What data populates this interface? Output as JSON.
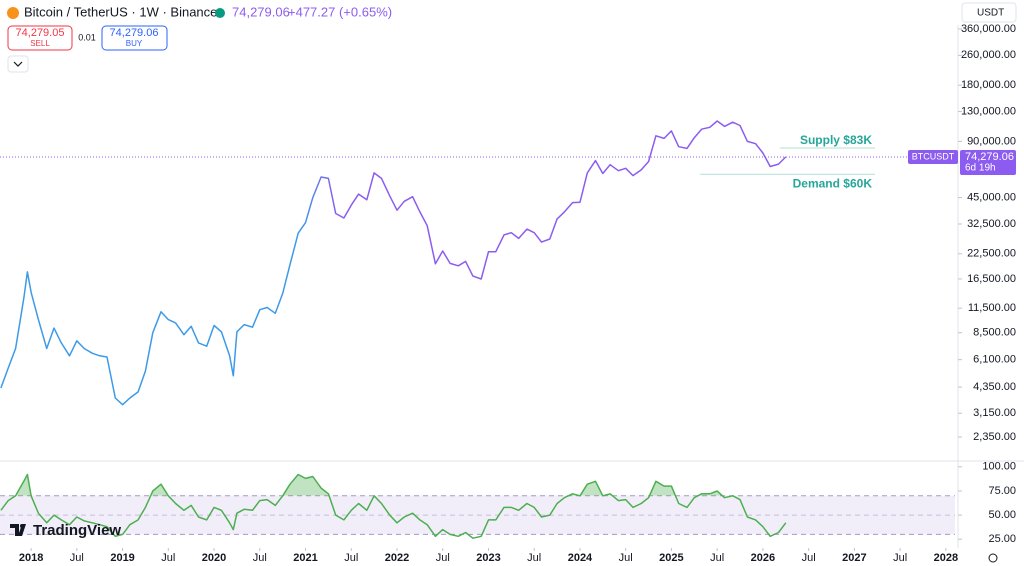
{
  "header": {
    "symbol": "Bitcoin / TetherUS · 1W · Binance",
    "price": "74,279.06",
    "change": "+477.27 (+0.65%)",
    "sell_price": "74,279.05",
    "sell": "SELL",
    "spread": "0.01",
    "buy_price": "74,279.06",
    "buy": "BUY",
    "currency": "USDT",
    "logo": "TradingView"
  },
  "chart_data": [
    {
      "type": "line",
      "log_scale": true,
      "x": [
        2017.67,
        2017.75,
        2017.83,
        2017.92,
        2017.96,
        2018.0,
        2018.08,
        2018.17,
        2018.25,
        2018.33,
        2018.42,
        2018.5,
        2018.58,
        2018.67,
        2018.75,
        2018.83,
        2018.92,
        2019.0,
        2019.08,
        2019.17,
        2019.25,
        2019.33,
        2019.42,
        2019.5,
        2019.58,
        2019.67,
        2019.75,
        2019.83,
        2019.92,
        2020.0,
        2020.08,
        2020.17,
        2020.21,
        2020.25,
        2020.33,
        2020.42,
        2020.5,
        2020.58,
        2020.67,
        2020.75,
        2020.83,
        2020.92,
        2021.0,
        2021.08,
        2021.17,
        2021.25,
        2021.33,
        2021.42,
        2021.5,
        2021.58,
        2021.67,
        2021.75,
        2021.83,
        2021.92,
        2022.0,
        2022.08,
        2022.17,
        2022.25,
        2022.33,
        2022.42,
        2022.5,
        2022.58,
        2022.67,
        2022.75,
        2022.83,
        2022.92,
        2023.0,
        2023.08,
        2023.17,
        2023.25,
        2023.33,
        2023.42,
        2023.5,
        2023.58,
        2023.67,
        2023.75,
        2023.83,
        2023.92,
        2024.0,
        2024.08,
        2024.17,
        2024.25,
        2024.33,
        2024.42,
        2024.5,
        2024.58,
        2024.67,
        2024.75,
        2024.83,
        2024.92,
        2025.0,
        2025.08,
        2025.17,
        2025.25,
        2025.33,
        2025.42,
        2025.5,
        2025.58,
        2025.67,
        2025.75,
        2025.83,
        2025.92,
        2026.0,
        2026.08,
        2026.17,
        2026.25
      ],
      "series": [
        {
          "name": "BTCUSDT",
          "color_gradient": [
            "#3d9ae8",
            "#8c5cf0"
          ],
          "values": [
            4300,
            5500,
            7000,
            13000,
            18000,
            14000,
            10000,
            7000,
            9000,
            7500,
            6400,
            7700,
            7000,
            6600,
            6400,
            6300,
            3800,
            3500,
            3800,
            4100,
            5300,
            8500,
            11000,
            10000,
            9600,
            8300,
            9200,
            7500,
            7200,
            9300,
            8600,
            6400,
            5000,
            8600,
            9400,
            9100,
            11300,
            11600,
            10800,
            13800,
            19700,
            29000,
            33000,
            45000,
            58000,
            57000,
            37000,
            35000,
            41000,
            47000,
            43800,
            61000,
            57000,
            46000,
            38500,
            43000,
            45500,
            37700,
            31800,
            19900,
            23300,
            20000,
            19400,
            20500,
            17100,
            16500,
            23100,
            23100,
            28400,
            29200,
            27200,
            30500,
            29200,
            26000,
            27000,
            34600,
            37700,
            42300,
            42500,
            61000,
            71000,
            60600,
            67500,
            62700,
            64600,
            59000,
            63300,
            70200,
            96400,
            93400,
            102400,
            84300,
            82500,
            94200,
            104600,
            107100,
            115700,
            108200,
            114000,
            109500,
            90000,
            87500,
            78000,
            66000,
            68000,
            74279.06
          ]
        }
      ],
      "last_price": {
        "value": 74279.06,
        "label": "74,279.06"
      },
      "countdown": "6d 19h",
      "annotations": [
        {
          "label": "Supply $83K",
          "value": 83000
        },
        {
          "label": "Demand $60K",
          "value": 60000
        }
      ],
      "xlim": [
        2017.66,
        2028.1
      ],
      "ylim": [
        1770,
        402000
      ],
      "xticks": [
        2018,
        {
          "value": 2018.5,
          "label": "Jul"
        },
        2019,
        {
          "value": 2019.5,
          "label": "Jul"
        },
        2020,
        {
          "value": 2020.5,
          "label": "Jul"
        },
        2021,
        {
          "value": 2021.5,
          "label": "Jul"
        },
        2022,
        {
          "value": 2022.5,
          "label": "Jul"
        },
        2023,
        {
          "value": 2023.5,
          "label": "Jul"
        },
        2024,
        {
          "value": 2024.5,
          "label": "Jul"
        },
        2025,
        {
          "value": 2025.5,
          "label": "Jul"
        },
        2026,
        {
          "value": 2026.5,
          "label": "Jul"
        },
        2027,
        {
          "value": 2027.5,
          "label": "Jul"
        },
        2028
      ],
      "yticks": [
        {
          "value": 2350,
          "label": "2,350.00"
        },
        {
          "value": 3150,
          "label": "3,150.00"
        },
        {
          "value": 4350,
          "label": "4,350.00"
        },
        {
          "value": 6100,
          "label": "6,100.00"
        },
        {
          "value": 8500,
          "label": "8,500.00"
        },
        {
          "value": 11500,
          "label": "11,500.00"
        },
        {
          "value": 16500,
          "label": "16,500.00"
        },
        {
          "value": 22500,
          "label": "22,500.00"
        },
        {
          "value": 32500,
          "label": "32,500.00"
        },
        {
          "value": 45000,
          "label": "45,000.00"
        },
        {
          "value": 90000,
          "label": "90,000.00"
        },
        {
          "value": 130000,
          "label": "130,000.00"
        },
        {
          "value": 180000,
          "label": "180,000.00"
        },
        {
          "value": 260000,
          "label": "260,000.00"
        },
        {
          "value": 360000,
          "label": "360,000.00"
        }
      ]
    },
    {
      "type": "line",
      "x": [
        2017.67,
        2017.75,
        2017.83,
        2017.92,
        2017.96,
        2018.0,
        2018.08,
        2018.17,
        2018.25,
        2018.33,
        2018.42,
        2018.5,
        2018.58,
        2018.67,
        2018.75,
        2018.83,
        2018.92,
        2019.0,
        2019.08,
        2019.17,
        2019.25,
        2019.33,
        2019.42,
        2019.5,
        2019.58,
        2019.67,
        2019.75,
        2019.83,
        2019.92,
        2020.0,
        2020.08,
        2020.17,
        2020.21,
        2020.25,
        2020.33,
        2020.42,
        2020.5,
        2020.58,
        2020.67,
        2020.75,
        2020.83,
        2020.92,
        2021.0,
        2021.08,
        2021.17,
        2021.25,
        2021.33,
        2021.42,
        2021.5,
        2021.58,
        2021.67,
        2021.75,
        2021.83,
        2021.92,
        2022.0,
        2022.08,
        2022.17,
        2022.25,
        2022.33,
        2022.42,
        2022.5,
        2022.58,
        2022.67,
        2022.75,
        2022.83,
        2022.92,
        2023.0,
        2023.08,
        2023.17,
        2023.25,
        2023.33,
        2023.42,
        2023.5,
        2023.58,
        2023.67,
        2023.75,
        2023.83,
        2023.92,
        2024.0,
        2024.08,
        2024.17,
        2024.25,
        2024.33,
        2024.42,
        2024.5,
        2024.58,
        2024.67,
        2024.75,
        2024.83,
        2024.92,
        2025.0,
        2025.08,
        2025.17,
        2025.25,
        2025.33,
        2025.42,
        2025.5,
        2025.58,
        2025.67,
        2025.75,
        2025.83,
        2025.92,
        2026.0,
        2026.08,
        2026.17,
        2026.25
      ],
      "series": [
        {
          "color": "#4caf50",
          "values": [
            55,
            65,
            70,
            85,
            92,
            70,
            52,
            42,
            50,
            45,
            40,
            48,
            44,
            42,
            40,
            38,
            28,
            30,
            40,
            45,
            58,
            75,
            82,
            70,
            62,
            55,
            60,
            48,
            45,
            58,
            55,
            42,
            35,
            52,
            56,
            55,
            65,
            66,
            60,
            70,
            82,
            92,
            88,
            90,
            78,
            72,
            50,
            45,
            55,
            62,
            55,
            70,
            62,
            50,
            42,
            48,
            52,
            45,
            40,
            28,
            35,
            30,
            28,
            32,
            26,
            28,
            45,
            45,
            58,
            58,
            55,
            62,
            58,
            48,
            50,
            62,
            68,
            72,
            70,
            82,
            85,
            70,
            72,
            65,
            66,
            58,
            62,
            68,
            85,
            80,
            80,
            62,
            58,
            68,
            72,
            72,
            75,
            68,
            70,
            66,
            48,
            45,
            38,
            28,
            32,
            42
          ]
        }
      ],
      "band": {
        "upper": 70,
        "lower": 30,
        "middle": 50
      },
      "band_color": "#7e57c2",
      "ylim": [
        19,
        105
      ],
      "yticks": [
        {
          "value": 25,
          "label": "25.00"
        },
        {
          "value": 50,
          "label": "50.00"
        },
        {
          "value": 75,
          "label": "75.00"
        },
        {
          "value": 100,
          "label": "100.00"
        }
      ]
    }
  ]
}
